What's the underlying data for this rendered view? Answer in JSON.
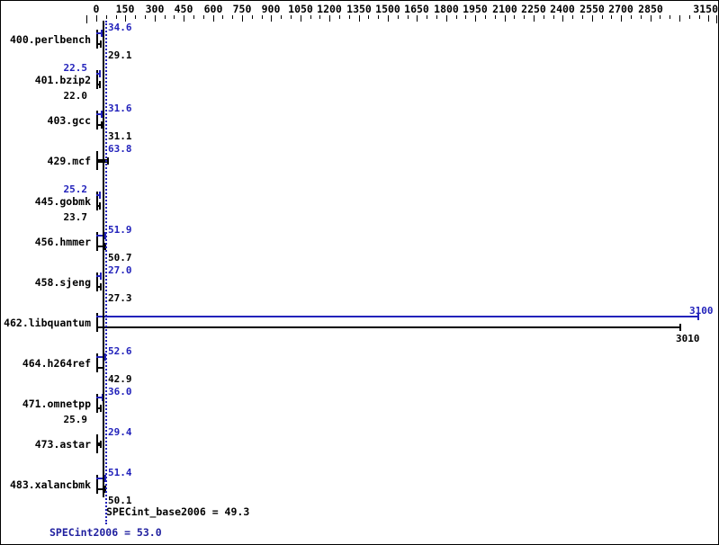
{
  "figure": {
    "summary_base_text": "SPECint_base2006 = 49.3",
    "summary_peak_text": "SPECint2006 = 53.0"
  },
  "chart_data": {
    "type": "bar",
    "orientation": "horizontal",
    "title": "",
    "xlabel": "",
    "ylabel": "",
    "axis": {
      "min": 0,
      "max": 3150,
      "major_step": 150,
      "minor_step": 50,
      "edge_ticks": [
        -50,
        3200
      ],
      "skip_labels": [
        3000
      ],
      "grid": false
    },
    "series_names": [
      "peak",
      "base"
    ],
    "colors": {
      "peak": "#2222bb",
      "base": "#000000"
    },
    "benchmarks": [
      {
        "name": "400.perlbench",
        "peak": "34.6",
        "base": "29.1",
        "peak_side": "right",
        "base_side": "right",
        "single": false
      },
      {
        "name": "401.bzip2",
        "peak": "22.5",
        "base": "22.0",
        "peak_side": "left",
        "base_side": "left",
        "single": false
      },
      {
        "name": "403.gcc",
        "peak": "31.6",
        "base": "31.1",
        "peak_side": "right",
        "base_side": "right",
        "single": false
      },
      {
        "name": "429.mcf",
        "peak": null,
        "base": "63.8",
        "peak_side": null,
        "base_side": "right",
        "single": true
      },
      {
        "name": "445.gobmk",
        "peak": "25.2",
        "base": "23.7",
        "peak_side": "left",
        "base_side": "left",
        "single": false
      },
      {
        "name": "456.hmmer",
        "peak": "51.9",
        "base": "50.7",
        "peak_side": "right",
        "base_side": "right",
        "single": false
      },
      {
        "name": "458.sjeng",
        "peak": "27.0",
        "base": "27.3",
        "peak_side": "right",
        "base_side": "right",
        "single": false
      },
      {
        "name": "462.libquantum",
        "peak": "3100",
        "base": "3010",
        "peak_side": "end",
        "base_side": "end",
        "single": false
      },
      {
        "name": "464.h264ref",
        "peak": "52.6",
        "base": "42.9",
        "peak_side": "right",
        "base_side": "right",
        "single": false
      },
      {
        "name": "471.omnetpp",
        "peak": "36.0",
        "base": "25.9",
        "peak_side": "right",
        "base_side": "left",
        "single": false
      },
      {
        "name": "473.astar",
        "peak": null,
        "base": "29.4",
        "peak_side": null,
        "base_side": "right",
        "single": true
      },
      {
        "name": "483.xalancbmk",
        "peak": "51.4",
        "base": "50.1",
        "peak_side": "right",
        "base_side": "right",
        "single": false
      }
    ],
    "reference_lines": [
      {
        "name": "SPECint_base2006",
        "value": 49.3,
        "style": "solid",
        "color": "#000000"
      },
      {
        "name": "SPECint2006",
        "value": 53.0,
        "style": "dotted",
        "color": "#2222bb"
      }
    ]
  }
}
